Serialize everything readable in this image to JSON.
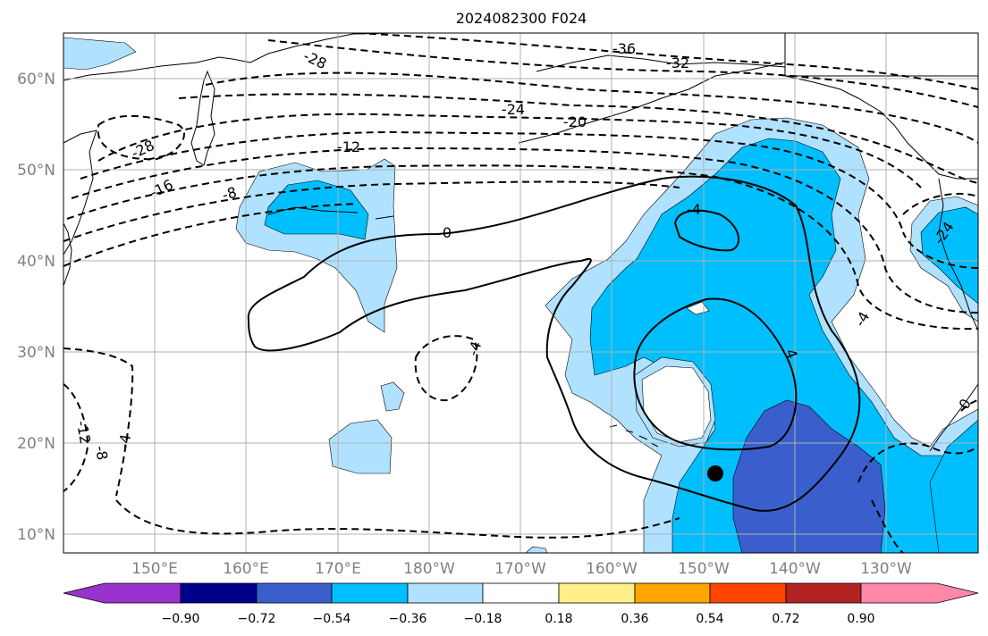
{
  "title": "2024082300 F024",
  "map": {
    "lat_labels": [
      "60°N",
      "50°N",
      "40°N",
      "30°N",
      "20°N",
      "10°N"
    ],
    "lon_labels": [
      "150°E",
      "160°E",
      "170°E",
      "180°W",
      "170°W",
      "160°W",
      "150°W",
      "140°W",
      "130°W"
    ],
    "contour_labels": [
      "-36",
      "-32",
      "-28",
      "-28",
      "-24",
      "-20",
      "-24",
      "-16",
      "-12",
      "-8",
      "0",
      "-4",
      "-4",
      "-4",
      "4",
      "-4",
      "-12",
      "-8",
      "-4",
      "-8",
      "0"
    ],
    "colors": {
      "ocean": "#ffffff",
      "grid": "#b0b0b0",
      "land_edge": "#000000"
    }
  },
  "colorbar": {
    "tick_labels": [
      "−0.90",
      "−0.72",
      "−0.54",
      "−0.36",
      "−0.18",
      "0.18",
      "0.36",
      "0.54",
      "0.72",
      "0.90"
    ],
    "colors": [
      "#9932cc",
      "#00008b",
      "#3a5fcd",
      "#00bfff",
      "#b0e2ff",
      "#ffffff",
      "#fff08a",
      "#ffa500",
      "#ff4500",
      "#b22222",
      "#ff88aa"
    ]
  },
  "marker": {
    "label": "storm-position",
    "color": "#000000"
  }
}
